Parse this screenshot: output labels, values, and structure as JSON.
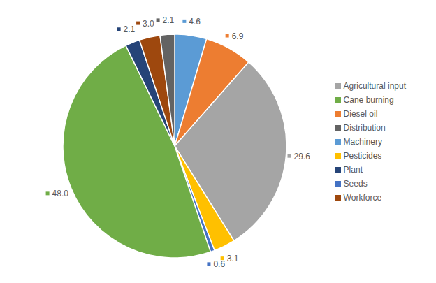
{
  "chart_data": {
    "type": "pie",
    "categories": [
      "Machinery",
      "Diesel oil",
      "Agricultural input",
      "Pesticides",
      "Seeds",
      "Cane burning",
      "Plant",
      "Workforce",
      "Distribution"
    ],
    "values": [
      4.6,
      6.9,
      29.6,
      3.1,
      0.6,
      48.0,
      2.1,
      3.0,
      2.1
    ],
    "value_labels": [
      "4.6",
      "6.9",
      "29.6",
      "3.1",
      "0.6",
      "48.0",
      "2.1",
      "3.0",
      "2.1"
    ],
    "colors": [
      "#5b9bd5",
      "#ed7d31",
      "#a5a5a5",
      "#ffc000",
      "#4472c4",
      "#70ad47",
      "#264478",
      "#9e480e",
      "#636363"
    ],
    "data_labels": true,
    "legend": "right"
  }
}
